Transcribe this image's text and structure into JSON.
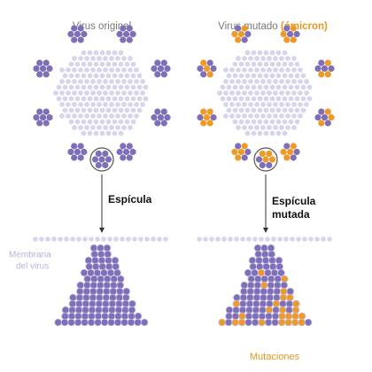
{
  "left": {
    "title": "Virus original",
    "label": "Espícula"
  },
  "right": {
    "title": "Virus mutado",
    "title_highlight": "(ómicron)",
    "label": "Espícula",
    "label_highlight": "mutada"
  },
  "membrane_label": [
    "Membrana",
    "del virus"
  ],
  "mutations_label": "Mutaciones"
}
